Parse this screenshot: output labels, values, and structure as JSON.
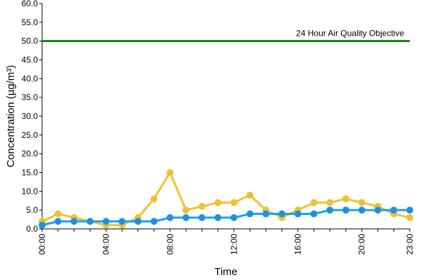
{
  "chart_data": {
    "type": "line",
    "title": "",
    "xlabel": "Time",
    "ylabel": "Concentration (µg/m³)",
    "ylim": [
      0,
      60
    ],
    "y_ticks": [
      "0.0",
      "5.0",
      "10.0",
      "15.0",
      "20.0",
      "25.0",
      "30.0",
      "35.0",
      "40.0",
      "45.0",
      "50.0",
      "55.0",
      "60.0"
    ],
    "x_tick_labels": [
      "00:00",
      "04:00",
      "08:00",
      "12:00",
      "16:00",
      "20:00",
      "23:00"
    ],
    "x_hours": [
      0,
      1,
      2,
      3,
      4,
      5,
      6,
      7,
      8,
      9,
      10,
      11,
      12,
      13,
      14,
      15,
      16,
      17,
      18,
      19,
      20,
      21,
      22,
      23
    ],
    "grid": false,
    "legend": "none",
    "series": [
      {
        "color": "#f2c12e",
        "marker_fill": "#e8c23a",
        "values": [
          2,
          4,
          3,
          2,
          1,
          1,
          3,
          8,
          15,
          5,
          6,
          7,
          7,
          9,
          5,
          3,
          5,
          7,
          7,
          8,
          7,
          6,
          4,
          3
        ]
      },
      {
        "color": "#1ea0e6",
        "marker_fill": "#1e8fe0",
        "values": [
          1,
          2,
          2,
          2,
          2,
          2,
          2,
          2,
          3,
          3,
          3,
          3,
          3,
          4,
          4,
          4,
          4,
          4,
          5,
          5,
          5,
          5,
          5,
          5
        ]
      }
    ],
    "objective_line": {
      "label": "24 Hour Air Quality Objective",
      "value": 50,
      "color": "#1a7a1a"
    }
  }
}
